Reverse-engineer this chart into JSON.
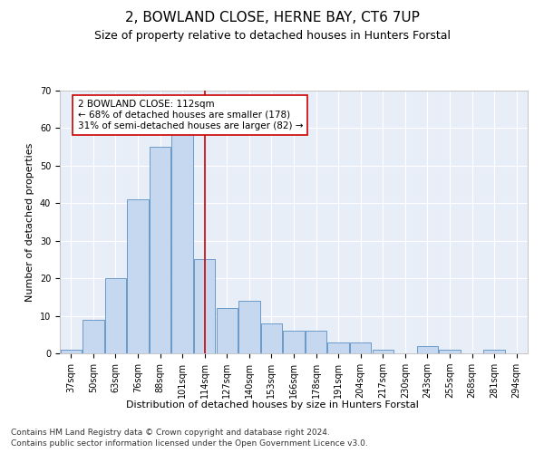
{
  "title": "2, BOWLAND CLOSE, HERNE BAY, CT6 7UP",
  "subtitle": "Size of property relative to detached houses in Hunters Forstal",
  "xlabel": "Distribution of detached houses by size in Hunters Forstal",
  "ylabel": "Number of detached properties",
  "categories": [
    "37sqm",
    "50sqm",
    "63sqm",
    "76sqm",
    "88sqm",
    "101sqm",
    "114sqm",
    "127sqm",
    "140sqm",
    "153sqm",
    "166sqm",
    "178sqm",
    "191sqm",
    "204sqm",
    "217sqm",
    "230sqm",
    "243sqm",
    "255sqm",
    "268sqm",
    "281sqm",
    "294sqm"
  ],
  "values": [
    1,
    9,
    20,
    41,
    55,
    59,
    25,
    12,
    14,
    8,
    6,
    6,
    3,
    3,
    1,
    0,
    2,
    1,
    0,
    1,
    0
  ],
  "bar_color": "#c5d8f0",
  "bar_edge_color": "#5a8fc2",
  "vline_x": 6,
  "vline_color": "#cc0000",
  "annotation_text": "2 BOWLAND CLOSE: 112sqm\n← 68% of detached houses are smaller (178)\n31% of semi-detached houses are larger (82) →",
  "annotation_box_color": "white",
  "annotation_box_edge_color": "#cc0000",
  "ylim": [
    0,
    70
  ],
  "yticks": [
    0,
    10,
    20,
    30,
    40,
    50,
    60,
    70
  ],
  "bg_color": "#e8eef8",
  "footer_line1": "Contains HM Land Registry data © Crown copyright and database right 2024.",
  "footer_line2": "Contains public sector information licensed under the Open Government Licence v3.0.",
  "title_fontsize": 11,
  "subtitle_fontsize": 9,
  "axis_label_fontsize": 8,
  "tick_fontsize": 7,
  "annotation_fontsize": 7.5,
  "footer_fontsize": 6.5
}
